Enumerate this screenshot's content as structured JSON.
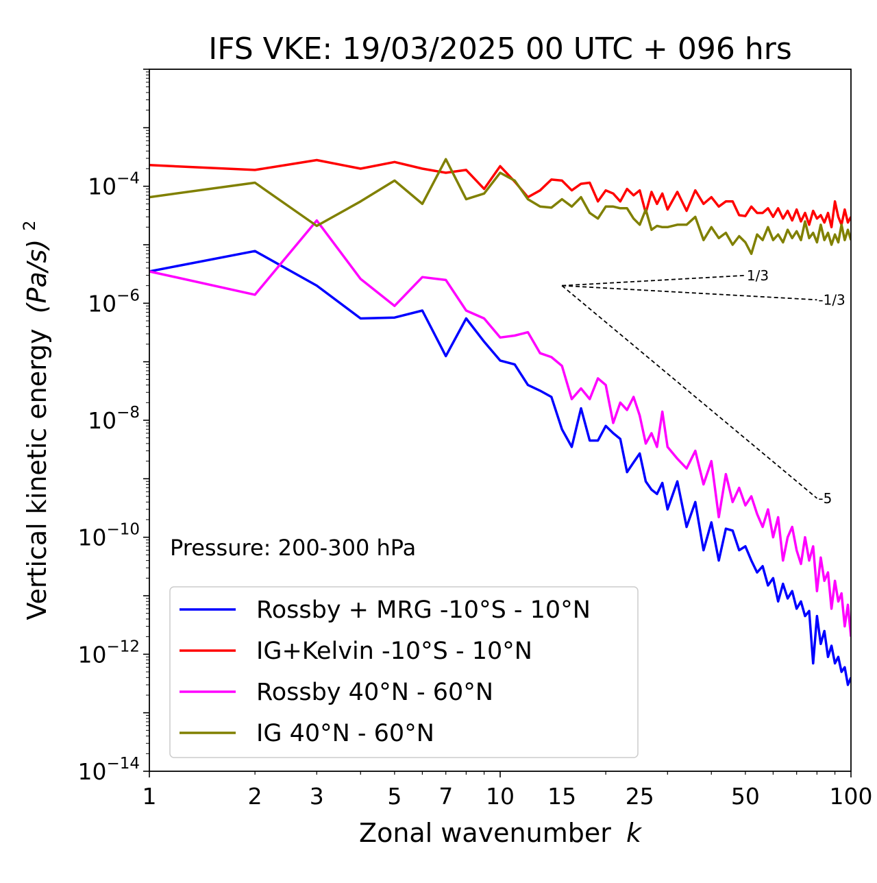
{
  "chart_data": {
    "type": "line",
    "title": "IFS VKE: 19/03/2025 00 UTC + 096 hrs",
    "xlabel": "Zonal wavenumber",
    "xlabel_symbol": "k",
    "ylabel": "Vertical kinetic energy",
    "ylabel_units": "(Pa/s)",
    "ylabel_exponent": "2",
    "annotation": "Pressure: 200-300 hPa",
    "x_scale": "log",
    "y_scale": "log",
    "xlim": [
      1,
      100
    ],
    "ylim": [
      1e-14,
      0.01
    ],
    "x_ticks": [
      1,
      2,
      3,
      5,
      7,
      10,
      15,
      25,
      50,
      100
    ],
    "x_tick_labels": [
      "1",
      "2",
      "3",
      "5",
      "7",
      "10",
      "15",
      "25",
      "50",
      "100"
    ],
    "y_ticks": [
      {
        "value": 0.0001,
        "base": "10",
        "exp": "−4"
      },
      {
        "value": 1e-06,
        "base": "10",
        "exp": "−6"
      },
      {
        "value": 1e-08,
        "base": "10",
        "exp": "−8"
      },
      {
        "value": 1e-10,
        "base": "10",
        "exp": "−10"
      },
      {
        "value": 1e-12,
        "base": "10",
        "exp": "−12"
      },
      {
        "value": 1e-14,
        "base": "10",
        "exp": "−14"
      }
    ],
    "legend_position": "lower-left",
    "series": [
      {
        "name": "Rossby + MRG -10°S - 10°N",
        "color": "#0000ff",
        "x": [
          1,
          2,
          3,
          4,
          5,
          6,
          7,
          8,
          9,
          10,
          11,
          12,
          13,
          14,
          15,
          16,
          17,
          18,
          19,
          20,
          21,
          22,
          23,
          24,
          25,
          26,
          27,
          28,
          29,
          30,
          32,
          34,
          36,
          38,
          40,
          42,
          44,
          46,
          48,
          50,
          52,
          54,
          56,
          58,
          60,
          62,
          64,
          66,
          68,
          70,
          72,
          74,
          76,
          78,
          80,
          82,
          84,
          86,
          88,
          90,
          92,
          94,
          96,
          98,
          100
        ],
        "y": [
          3.5e-06,
          7.8e-06,
          2e-06,
          5.5e-07,
          5.7e-07,
          7.5e-07,
          1.25e-07,
          5.5e-07,
          2.2e-07,
          1.05e-07,
          9e-08,
          4e-08,
          3.2e-08,
          2.5e-08,
          7e-09,
          3.5e-09,
          1.6e-08,
          4.5e-09,
          4.5e-09,
          8e-09,
          6e-09,
          4.8e-09,
          1.3e-09,
          1.9e-09,
          2.7e-09,
          9e-10,
          6.5e-10,
          5.5e-10,
          8.5e-10,
          3e-10,
          9e-10,
          1.5e-10,
          4e-10,
          6e-11,
          1.8e-10,
          4e-11,
          1.4e-10,
          1.3e-10,
          6e-11,
          7e-11,
          4e-11,
          2.5e-11,
          3.2e-11,
          1.5e-11,
          2e-11,
          8e-12,
          1.6e-11,
          9e-12,
          1.2e-11,
          6e-12,
          8e-12,
          4.5e-12,
          5.5e-12,
          7e-13,
          4.5e-12,
          1.5e-12,
          2.5e-12,
          9e-13,
          1.4e-12,
          7e-13,
          9e-13,
          5e-13,
          6e-13,
          3e-13,
          4e-13
        ]
      },
      {
        "name": "IG+Kelvin -10°S - 10°N",
        "color": "#ff0000",
        "x": [
          1,
          2,
          3,
          4,
          5,
          6,
          7,
          8,
          9,
          10,
          11,
          12,
          13,
          14,
          15,
          16,
          17,
          18,
          19,
          20,
          21,
          22,
          23,
          24,
          25,
          26,
          27,
          28,
          29,
          30,
          32,
          34,
          36,
          38,
          40,
          42,
          44,
          46,
          48,
          50,
          52,
          54,
          56,
          58,
          60,
          62,
          64,
          66,
          68,
          70,
          72,
          74,
          76,
          78,
          80,
          82,
          84,
          86,
          88,
          90,
          92,
          94,
          96,
          98,
          100
        ],
        "y": [
          0.00023,
          0.00019,
          0.00028,
          0.0002,
          0.00026,
          0.0002,
          0.00017,
          0.00019,
          9e-05,
          0.00022,
          0.00012,
          6.5e-05,
          8.5e-05,
          0.00013,
          0.000125,
          8.5e-05,
          0.00011,
          0.000115,
          5.5e-05,
          8.5e-05,
          7.5e-05,
          5.5e-05,
          9e-05,
          7e-05,
          8.5e-05,
          3.5e-05,
          8e-05,
          5e-05,
          7.5e-05,
          4e-05,
          8e-05,
          3.8e-05,
          8.5e-05,
          5e-05,
          6.5e-05,
          4.5e-05,
          5.5e-05,
          5.5e-05,
          3.2e-05,
          3.1e-05,
          4.5e-05,
          3.5e-05,
          3.5e-05,
          4.2e-05,
          3e-05,
          4.2e-05,
          2.8e-05,
          3.8e-05,
          2.6e-05,
          4e-05,
          2.5e-05,
          3.5e-05,
          2.2e-05,
          3.8e-05,
          2.8e-05,
          3.2e-05,
          2.4e-05,
          3.5e-05,
          2e-05,
          5.5e-05,
          3e-05,
          2.2e-05,
          4e-05,
          2.4e-05,
          3e-05
        ]
      },
      {
        "name": "Rossby 40°N - 60°N",
        "color": "#ff00ff",
        "x": [
          1,
          2,
          3,
          4,
          5,
          6,
          7,
          8,
          9,
          10,
          11,
          12,
          13,
          14,
          15,
          16,
          17,
          18,
          19,
          20,
          21,
          22,
          23,
          24,
          25,
          26,
          27,
          28,
          29,
          30,
          32,
          34,
          36,
          38,
          40,
          42,
          44,
          46,
          48,
          50,
          52,
          54,
          56,
          58,
          60,
          62,
          64,
          66,
          68,
          70,
          72,
          74,
          76,
          78,
          80,
          82,
          84,
          86,
          88,
          90,
          92,
          94,
          96,
          98,
          100
        ],
        "y": [
          3.5e-06,
          1.4e-06,
          2.6e-05,
          2.6e-06,
          9e-07,
          2.8e-06,
          2.5e-06,
          7.5e-07,
          5.5e-07,
          2.6e-07,
          2.8e-07,
          3.2e-07,
          1.4e-07,
          1.2e-07,
          8.5e-08,
          2.3e-08,
          3.5e-08,
          2.3e-08,
          5.2e-08,
          4e-08,
          9e-09,
          2e-08,
          1.5e-08,
          2.5e-08,
          1.2e-08,
          4e-09,
          6e-09,
          3.5e-09,
          1.4e-08,
          3.5e-09,
          2.2e-09,
          1.5e-09,
          3e-09,
          8e-10,
          2e-09,
          2.2e-10,
          1.2e-09,
          4e-10,
          7e-10,
          3.5e-10,
          5e-10,
          2.5e-10,
          1.5e-10,
          3e-10,
          1e-10,
          2.2e-10,
          4e-11,
          1e-10,
          1.5e-10,
          6e-11,
          3.5e-11,
          1e-10,
          4e-11,
          7e-11,
          1.2e-11,
          4.5e-11,
          1.8e-11,
          2.5e-11,
          6e-12,
          1.8e-11,
          8e-12,
          1.1e-11,
          3e-12,
          7e-12,
          2e-12
        ]
      },
      {
        "name": "IG 40°N - 60°N",
        "color": "#808000",
        "x": [
          1,
          2,
          3,
          4,
          5,
          6,
          7,
          8,
          9,
          10,
          11,
          12,
          13,
          14,
          15,
          16,
          17,
          18,
          19,
          20,
          21,
          22,
          23,
          24,
          25,
          26,
          27,
          28,
          29,
          30,
          32,
          34,
          36,
          38,
          40,
          42,
          44,
          46,
          48,
          50,
          52,
          54,
          56,
          58,
          60,
          62,
          64,
          66,
          68,
          70,
          72,
          74,
          76,
          78,
          80,
          82,
          84,
          86,
          88,
          90,
          92,
          94,
          96,
          98,
          100
        ],
        "y": [
          6.5e-05,
          0.000115,
          2.1e-05,
          5.5e-05,
          0.000125,
          5e-05,
          0.00029,
          6e-05,
          7.5e-05,
          0.00017,
          0.000125,
          6e-05,
          4.5e-05,
          4.3e-05,
          6e-05,
          4.5e-05,
          6.5e-05,
          3.5e-05,
          2.8e-05,
          4.5e-05,
          4.5e-05,
          4.2e-05,
          4.2e-05,
          2.8e-05,
          2.2e-05,
          4e-05,
          1.8e-05,
          2.1e-05,
          2e-05,
          2e-05,
          2.2e-05,
          2.2e-05,
          3e-05,
          1.2e-05,
          2e-05,
          1.3e-05,
          1.6e-05,
          1e-05,
          1.4e-05,
          1.1e-05,
          7e-06,
          1.5e-05,
          1.2e-05,
          2e-05,
          1.2e-05,
          1.5e-05,
          1.1e-05,
          1.8e-05,
          1.3e-05,
          1.7e-05,
          1.2e-05,
          2.5e-05,
          1.3e-05,
          1.6e-05,
          1.1e-05,
          2.2e-05,
          1.2e-05,
          1.6e-05,
          1e-05,
          1.5e-05,
          1.1e-05,
          2.2e-05,
          1.2e-05,
          1.8e-05,
          1.2e-05
        ]
      }
    ],
    "reference_slopes": [
      {
        "label": "1/3",
        "slope": 0.3333,
        "x0": 15,
        "y0": 2e-06,
        "x1": 50,
        "color": "#000000"
      },
      {
        "label": "-1/3",
        "slope": -0.3333,
        "x0": 15,
        "y0": 2e-06,
        "x1": 80,
        "color": "#000000"
      },
      {
        "label": "-5",
        "slope": -5,
        "x0": 15,
        "y0": 2e-06,
        "x1": 80,
        "color": "#000000"
      }
    ]
  }
}
